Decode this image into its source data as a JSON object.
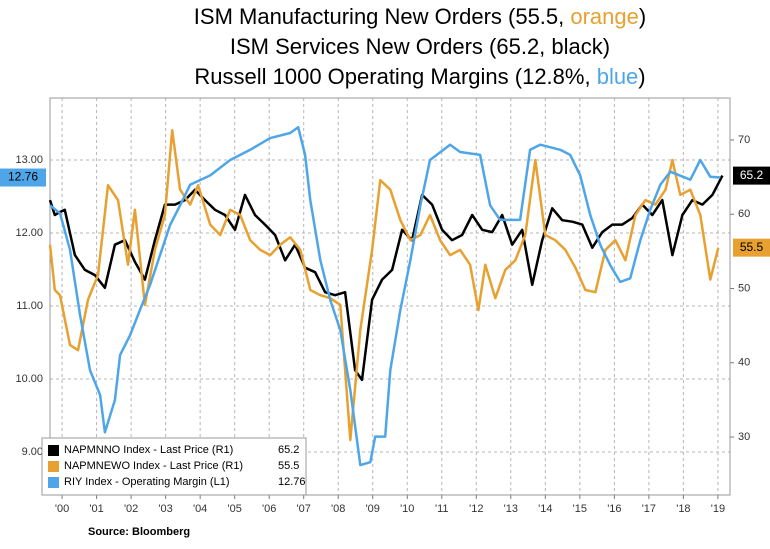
{
  "chart_data": {
    "type": "line",
    "title": [
      {
        "parts": [
          "ISM Manufacturing New Orders (55.5, ",
          "orange",
          ")"
        ],
        "colors": [
          "#000000",
          "#e8a030",
          "#000000"
        ]
      },
      {
        "parts": [
          "ISM Services New Orders (65.2, black)"
        ],
        "colors": [
          "#000000"
        ]
      },
      {
        "parts": [
          "Russell 1000 Operating Margins (12.8%, ",
          "blue",
          ")"
        ],
        "colors": [
          "#000000",
          "#4ea6e8",
          "#000000"
        ]
      }
    ],
    "source": "Source: Bloomberg",
    "xlim": [
      1999.65,
      2019.35
    ],
    "xticks": [
      {
        "value": 2000,
        "label": "'00"
      },
      {
        "value": 2001,
        "label": "'01"
      },
      {
        "value": 2002,
        "label": "'02"
      },
      {
        "value": 2003,
        "label": "'03"
      },
      {
        "value": 2004,
        "label": "'04"
      },
      {
        "value": 2005,
        "label": "'05"
      },
      {
        "value": 2006,
        "label": "'06"
      },
      {
        "value": 2007,
        "label": "'07"
      },
      {
        "value": 2008,
        "label": "'08"
      },
      {
        "value": 2009,
        "label": "'09"
      },
      {
        "value": 2010,
        "label": "'10"
      },
      {
        "value": 2011,
        "label": "'11"
      },
      {
        "value": 2012,
        "label": "'12"
      },
      {
        "value": 2013,
        "label": "'13"
      },
      {
        "value": 2014,
        "label": "'14"
      },
      {
        "value": 2015,
        "label": "'15"
      },
      {
        "value": 2016,
        "label": "'16"
      },
      {
        "value": 2017,
        "label": "'17"
      },
      {
        "value": 2018,
        "label": "'18"
      },
      {
        "value": 2019,
        "label": "'19"
      }
    ],
    "ylim": [
      8.41,
      13.85
    ],
    "yticks": [
      {
        "value": 9,
        "label": "9.00"
      },
      {
        "value": 10,
        "label": "10.00"
      },
      {
        "value": 11,
        "label": "11.00"
      },
      {
        "value": 12,
        "label": "12.00"
      },
      {
        "value": 13,
        "label": "13.00"
      }
    ],
    "y2lim": [
      22.2,
      75.65
    ],
    "y2ticks": [
      30,
      40,
      50,
      60,
      70
    ],
    "grid": true,
    "legend": "lower left",
    "series": [
      {
        "name": "NAPMNNO Index - Last Price (R1)",
        "color": "#000000",
        "axis": "y2",
        "value_label": "65.2",
        "x": [
          1999.65,
          1999.79,
          1999.94,
          2000.08,
          2000.37,
          2000.66,
          2000.95,
          2001.24,
          2001.53,
          2001.82,
          2002.11,
          2002.4,
          2002.69,
          2002.98,
          2003.27,
          2003.56,
          2003.85,
          2004.14,
          2004.43,
          2004.72,
          2005.01,
          2005.3,
          2005.59,
          2005.88,
          2006.17,
          2006.46,
          2006.75,
          2007.04,
          2007.33,
          2007.62,
          2007.91,
          2008.2,
          2008.49,
          2008.69,
          2008.98,
          2009.27,
          2009.56,
          2009.85,
          2010.14,
          2010.43,
          2010.72,
          2011.01,
          2011.3,
          2011.59,
          2011.88,
          2012.17,
          2012.46,
          2012.75,
          2013.04,
          2013.33,
          2013.62,
          2013.91,
          2014.2,
          2014.49,
          2014.78,
          2015.07,
          2015.36,
          2015.65,
          2015.94,
          2016.23,
          2016.52,
          2016.81,
          2017.1,
          2017.39,
          2017.68,
          2017.97,
          2018.26,
          2018.55,
          2018.84,
          2019.13
        ],
        "values": [
          61.9,
          59.9,
          60.3,
          60.6,
          54.5,
          52.5,
          51.8,
          50.1,
          55.9,
          56.5,
          53.6,
          51.2,
          56.5,
          61.3,
          61.3,
          61.9,
          63.3,
          61.9,
          60.6,
          59.9,
          57.9,
          62.6,
          59.9,
          58.6,
          57.2,
          53.8,
          55.9,
          52.8,
          52.2,
          49.5,
          49.1,
          49.5,
          39.0,
          37.7,
          48.5,
          51.2,
          52.5,
          57.9,
          56.5,
          62.6,
          61.3,
          57.9,
          56.5,
          57.2,
          59.9,
          57.9,
          57.6,
          59.9,
          55.9,
          57.9,
          50.5,
          56.5,
          60.8,
          59.2,
          59.0,
          58.6,
          55.5,
          57.6,
          58.6,
          58.6,
          59.5,
          61.3,
          59.9,
          61.9,
          54.5,
          59.9,
          61.9,
          61.3,
          62.6,
          65.2
        ]
      },
      {
        "name": "NAPMNEWO Index - Last Price (R1)",
        "color": "#e8a030",
        "axis": "y2",
        "value_label": "55.5",
        "x": [
          1999.65,
          1999.79,
          1999.94,
          2000.23,
          2000.46,
          2000.75,
          2001.04,
          2001.33,
          2001.62,
          2001.91,
          2002.11,
          2002.4,
          2002.69,
          2002.98,
          2003.19,
          2003.42,
          2003.71,
          2003.94,
          2004.29,
          2004.58,
          2004.87,
          2005.16,
          2005.45,
          2005.74,
          2006.03,
          2006.32,
          2006.61,
          2006.9,
          2007.19,
          2007.48,
          2007.77,
          2008.06,
          2008.35,
          2008.64,
          2008.98,
          2009.22,
          2009.51,
          2009.8,
          2010.09,
          2010.38,
          2010.66,
          2010.95,
          2011.24,
          2011.53,
          2011.82,
          2012.06,
          2012.26,
          2012.55,
          2012.84,
          2013.13,
          2013.42,
          2013.71,
          2014.0,
          2014.29,
          2014.58,
          2014.87,
          2015.16,
          2015.45,
          2015.74,
          2016.03,
          2016.32,
          2016.61,
          2016.9,
          2017.19,
          2017.48,
          2017.68,
          2017.91,
          2018.2,
          2018.49,
          2018.78,
          2019.01
        ],
        "values": [
          55.9,
          49.8,
          49.1,
          42.4,
          41.7,
          48.5,
          51.8,
          63.9,
          61.9,
          53.2,
          60.6,
          47.8,
          55.2,
          59.9,
          71.3,
          63.3,
          61.3,
          63.9,
          58.6,
          57.2,
          60.6,
          59.9,
          56.5,
          55.2,
          54.5,
          55.9,
          56.9,
          55.2,
          49.8,
          49.1,
          48.7,
          47.8,
          29.6,
          44.4,
          55.2,
          64.6,
          63.3,
          59.2,
          56.5,
          57.2,
          59.9,
          56.5,
          54.5,
          55.2,
          53.2,
          47.1,
          53.2,
          48.7,
          52.5,
          53.8,
          57.2,
          67.3,
          57.2,
          56.5,
          55.2,
          52.8,
          49.8,
          49.5,
          55.2,
          56.5,
          53.8,
          59.9,
          61.9,
          61.3,
          63.3,
          67.3,
          62.6,
          63.3,
          59.9,
          51.2,
          55.5
        ]
      },
      {
        "name": "RIY Index - Operating Margin (L1)",
        "color": "#4ea6e8",
        "axis": "y",
        "value_label": "12.76",
        "x": [
          1999.65,
          1999.94,
          2000.23,
          2000.52,
          2000.81,
          2001.1,
          2001.24,
          2001.53,
          2001.68,
          2001.97,
          2002.26,
          2002.55,
          2002.84,
          2003.13,
          2003.42,
          2003.71,
          2004.29,
          2004.87,
          2005.45,
          2006.03,
          2006.61,
          2006.84,
          2007.04,
          2007.19,
          2007.48,
          2007.77,
          2008.06,
          2008.35,
          2008.64,
          2008.93,
          2009.07,
          2009.36,
          2009.51,
          2009.8,
          2010.09,
          2010.38,
          2010.66,
          2011.24,
          2011.53,
          2012.11,
          2012.4,
          2012.69,
          2013.27,
          2013.56,
          2013.85,
          2014.43,
          2014.72,
          2015.01,
          2015.3,
          2015.59,
          2015.88,
          2016.17,
          2016.46,
          2016.75,
          2017.04,
          2017.33,
          2017.62,
          2018.2,
          2018.49,
          2018.78,
          2019.07
        ],
        "values": [
          12.38,
          12.27,
          11.77,
          10.88,
          10.12,
          9.78,
          9.27,
          9.71,
          10.33,
          10.6,
          10.95,
          11.29,
          11.7,
          12.11,
          12.38,
          12.66,
          12.79,
          13.0,
          13.14,
          13.3,
          13.37,
          13.45,
          13.07,
          12.45,
          11.63,
          11.08,
          10.67,
          9.85,
          8.82,
          8.86,
          9.21,
          9.21,
          10.12,
          10.95,
          11.63,
          12.38,
          13.0,
          13.21,
          13.11,
          13.07,
          12.38,
          12.18,
          12.18,
          13.14,
          13.21,
          13.14,
          13.07,
          12.79,
          12.25,
          11.84,
          11.56,
          11.33,
          11.38,
          11.9,
          12.32,
          12.66,
          12.84,
          12.73,
          13.0,
          12.77,
          12.76
        ]
      }
    ]
  }
}
